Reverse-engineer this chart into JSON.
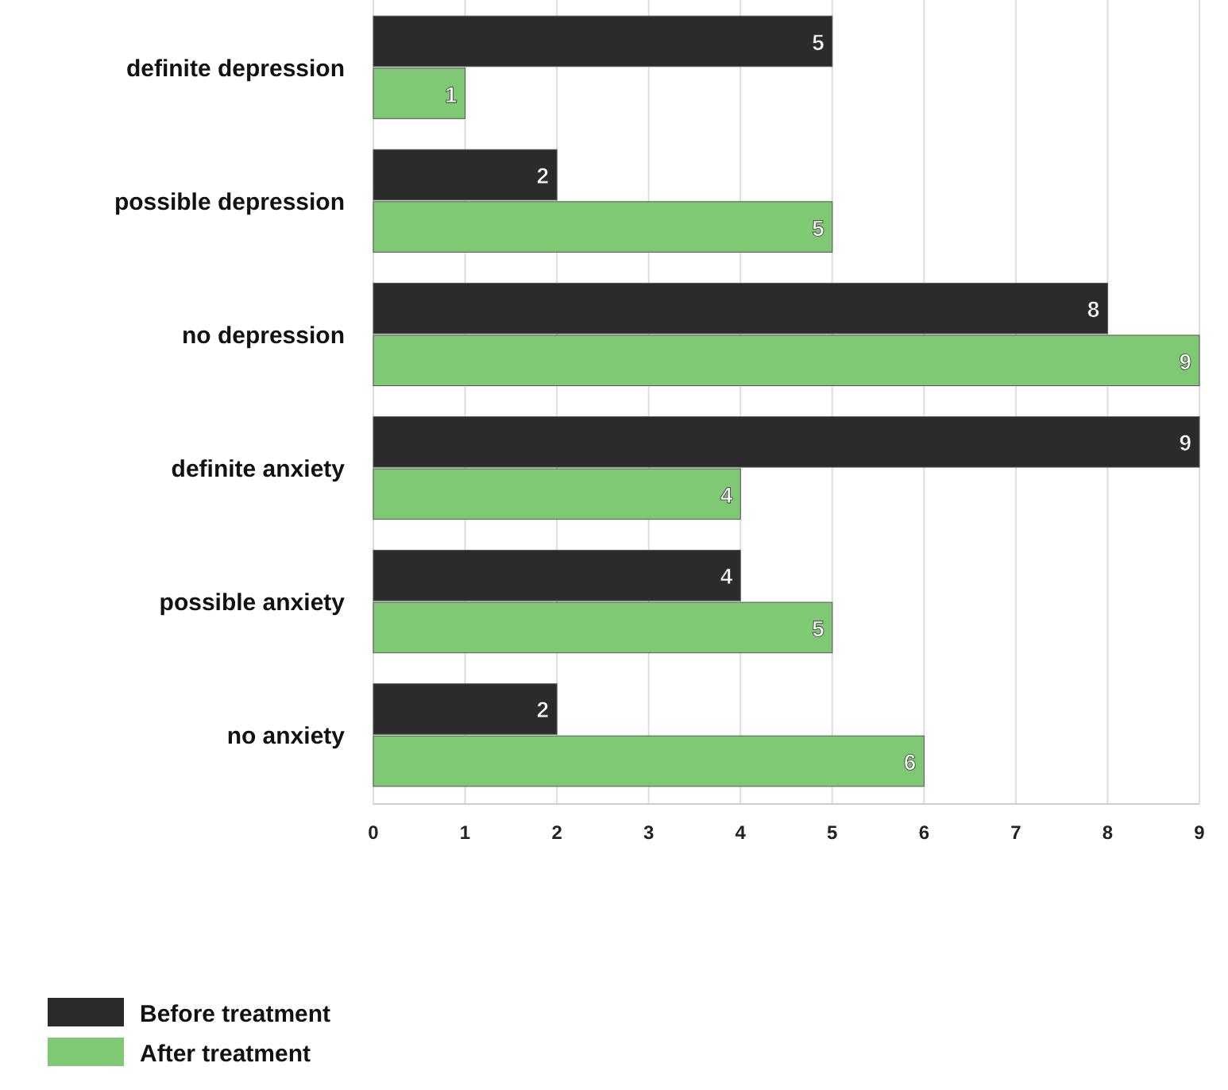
{
  "chart_data": {
    "type": "bar",
    "orientation": "horizontal",
    "categories": [
      "definite depression",
      "possible depression",
      "no depression",
      "definite anxiety",
      "possible anxiety",
      "no anxiety"
    ],
    "series": [
      {
        "name": "Before treatment",
        "color": "#2b2b2b",
        "values": [
          5,
          2,
          8,
          9,
          4,
          2
        ]
      },
      {
        "name": "After treatment",
        "color": "#7fc874",
        "values": [
          1,
          5,
          9,
          4,
          5,
          6
        ]
      }
    ],
    "xlim": [
      0,
      9
    ],
    "xticks": [
      0,
      1,
      2,
      3,
      4,
      5,
      6,
      7,
      8,
      9
    ],
    "grid": "x",
    "data_labels": true,
    "legend": "bottom left"
  }
}
